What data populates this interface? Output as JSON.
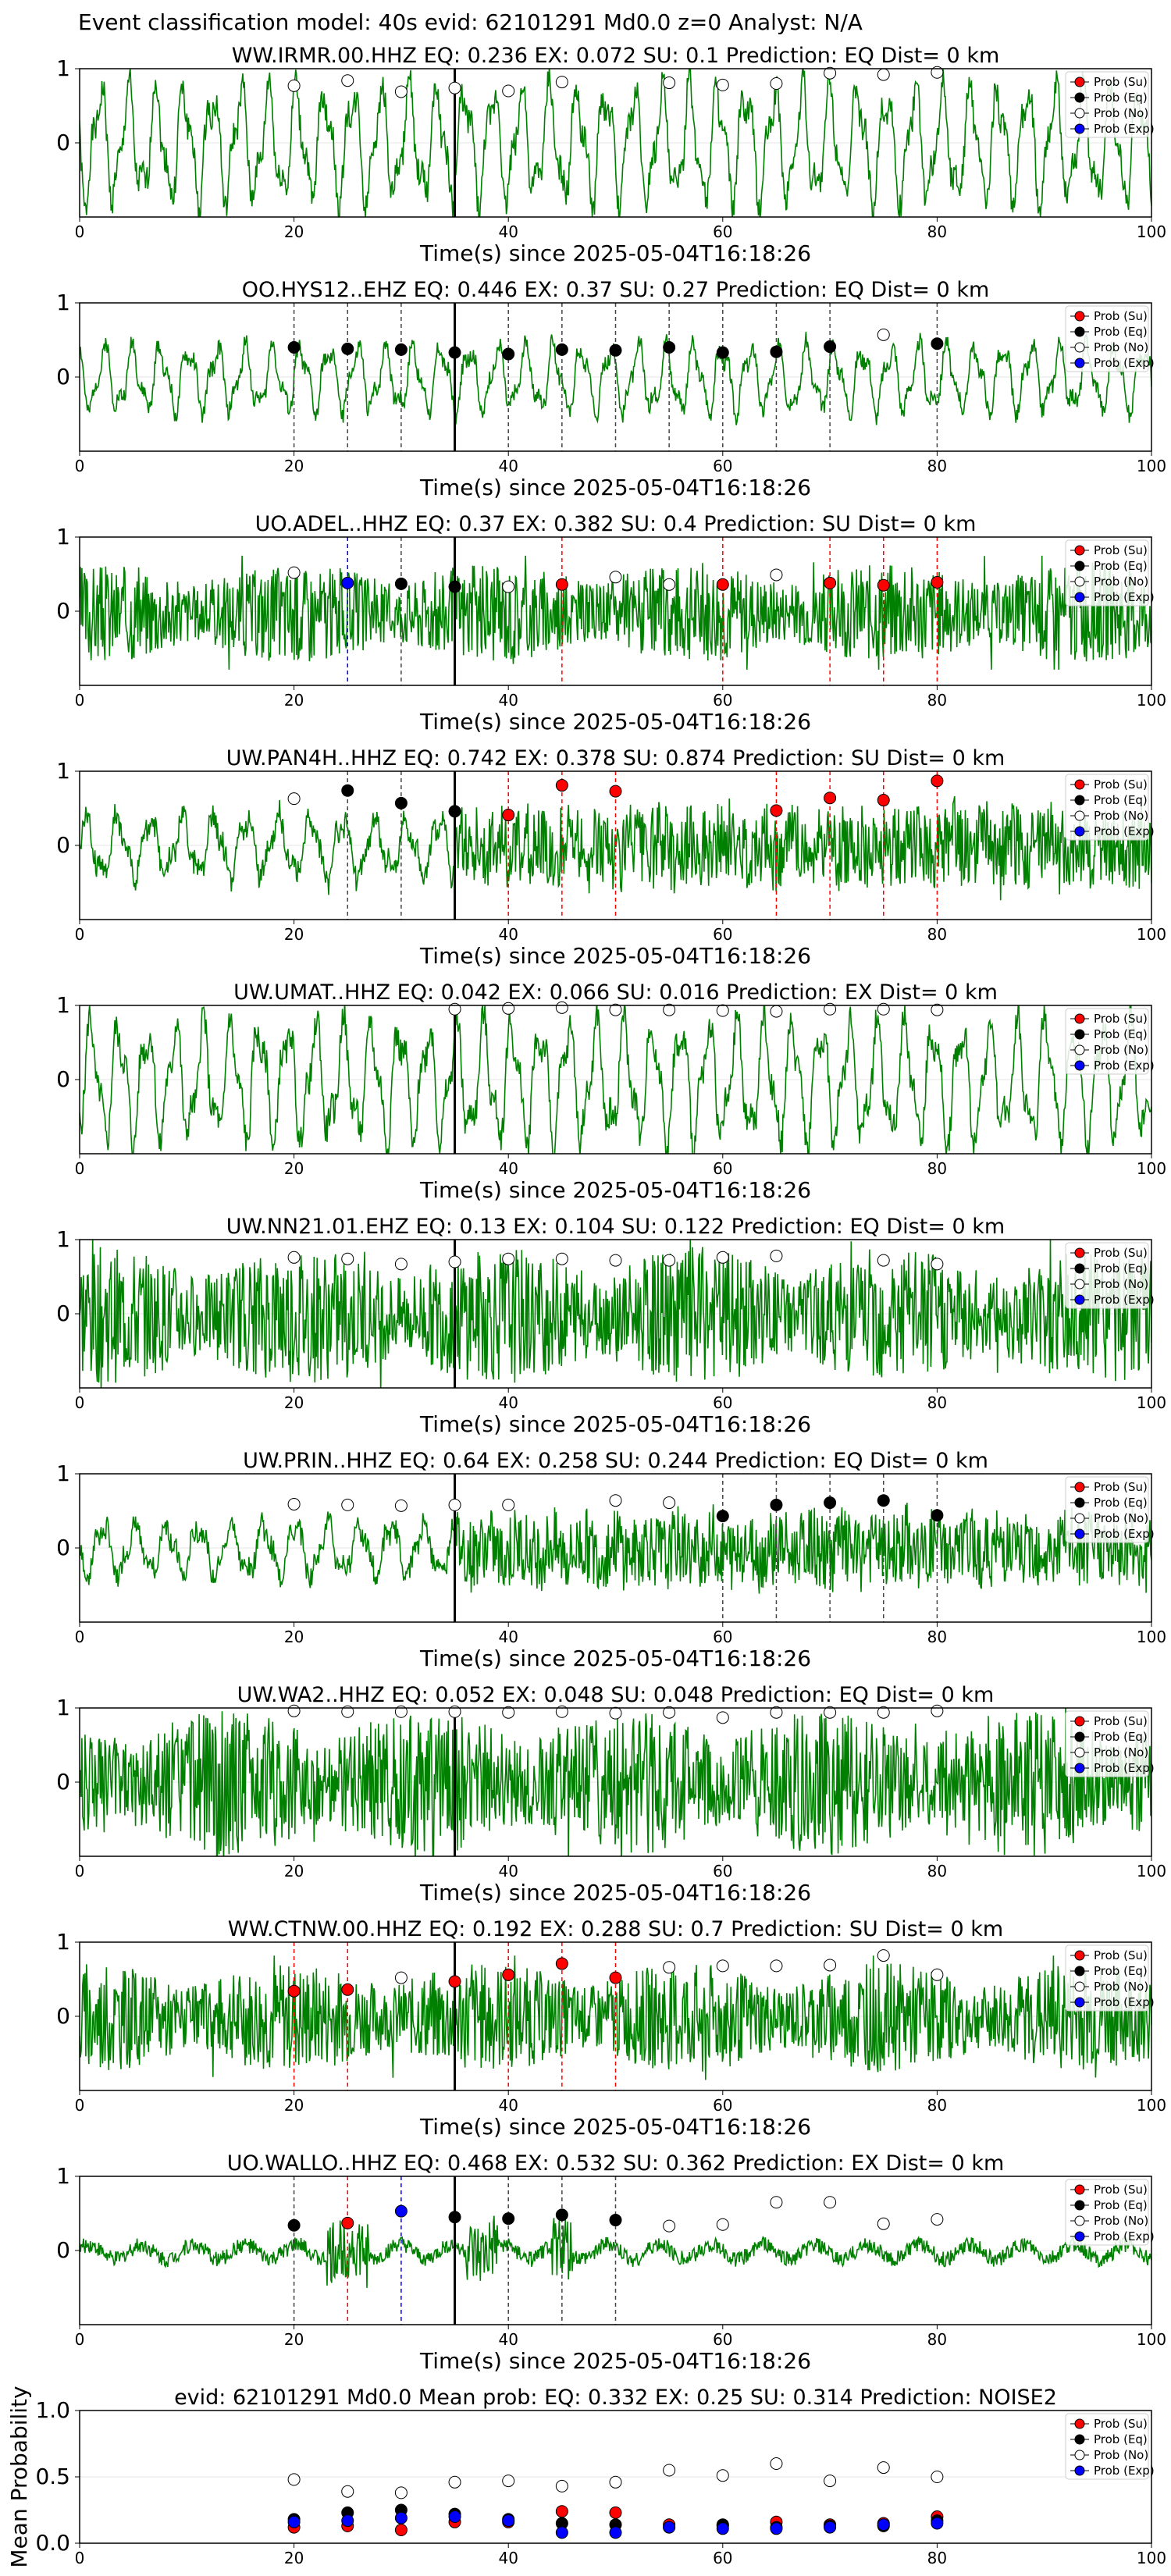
{
  "figure": {
    "suptitle": "Event classification model: 40s evid: 62101291 Md0.0 z=0 Analyst: N/A",
    "xlabel": "Time(s) since 2025-05-04T16:18:26",
    "legend": [
      "Prob (Su)",
      "Prob (Eq)",
      "Prob (No)",
      "Prob (Exp)"
    ],
    "colors": {
      "su": "#ff0000",
      "eq": "#000000",
      "no": "#ffffff",
      "exp": "#0000ff",
      "trace": "#008000",
      "onset": "#000000"
    }
  },
  "chart_data": [
    {
      "type": "line",
      "station": "WW.IRMR.00.HHZ",
      "title": "WW.IRMR.00.HHZ   EQ: 0.236   EX: 0.072   SU: 0.1   Prediction: EQ    Dist= 0 km",
      "xlim": [
        0,
        100
      ],
      "ylim": [
        -1,
        1
      ],
      "xticks": [
        0,
        20,
        40,
        60,
        80,
        100
      ],
      "yticks": [
        0,
        1
      ],
      "trace": {
        "style": "lowfreq",
        "amplitude": 0.78,
        "seed": 1
      },
      "onset": 35,
      "points": [
        {
          "x": 20,
          "y": 0.77,
          "c": "no"
        },
        {
          "x": 25,
          "y": 0.84,
          "c": "no"
        },
        {
          "x": 30,
          "y": 0.69,
          "c": "no"
        },
        {
          "x": 35,
          "y": 0.74,
          "c": "no"
        },
        {
          "x": 40,
          "y": 0.7,
          "c": "no"
        },
        {
          "x": 45,
          "y": 0.82,
          "c": "no"
        },
        {
          "x": 55,
          "y": 0.81,
          "c": "no"
        },
        {
          "x": 60,
          "y": 0.78,
          "c": "no"
        },
        {
          "x": 65,
          "y": 0.8,
          "c": "no"
        },
        {
          "x": 70,
          "y": 0.94,
          "c": "no"
        },
        {
          "x": 75,
          "y": 0.92,
          "c": "no"
        },
        {
          "x": 80,
          "y": 0.95,
          "c": "no"
        }
      ]
    },
    {
      "type": "line",
      "station": "OO.HYS12..EHZ",
      "title": "OO.HYS12..EHZ   EQ: 0.446   EX: 0.37   SU: 0.27   Prediction: EQ    Dist= 0 km",
      "xlim": [
        0,
        100
      ],
      "ylim": [
        -1,
        1
      ],
      "xticks": [
        0,
        20,
        40,
        60,
        80,
        100
      ],
      "yticks": [
        0,
        1
      ],
      "trace": {
        "style": "lowfreq",
        "amplitude": 0.45,
        "seed": 2
      },
      "onset": 35,
      "points": [
        {
          "x": 20,
          "y": 0.4,
          "c": "eq"
        },
        {
          "x": 25,
          "y": 0.38,
          "c": "eq"
        },
        {
          "x": 30,
          "y": 0.37,
          "c": "eq"
        },
        {
          "x": 35,
          "y": 0.33,
          "c": "eq"
        },
        {
          "x": 40,
          "y": 0.31,
          "c": "eq"
        },
        {
          "x": 45,
          "y": 0.37,
          "c": "eq"
        },
        {
          "x": 50,
          "y": 0.36,
          "c": "eq"
        },
        {
          "x": 55,
          "y": 0.4,
          "c": "eq"
        },
        {
          "x": 60,
          "y": 0.33,
          "c": "eq"
        },
        {
          "x": 65,
          "y": 0.34,
          "c": "eq"
        },
        {
          "x": 70,
          "y": 0.41,
          "c": "eq"
        },
        {
          "x": 75,
          "y": 0.57,
          "c": "no"
        },
        {
          "x": 80,
          "y": 0.45,
          "c": "eq"
        }
      ]
    },
    {
      "type": "line",
      "station": "UO.ADEL..HHZ",
      "title": "UO.ADEL..HHZ   EQ: 0.37   EX: 0.382   SU: 0.4   Prediction: SU    Dist= 0 km",
      "xlim": [
        0,
        100
      ],
      "ylim": [
        -1,
        1
      ],
      "xticks": [
        0,
        20,
        40,
        60,
        80,
        100
      ],
      "yticks": [
        0,
        1
      ],
      "trace": {
        "style": "noisy",
        "amplitude": 0.55,
        "seed": 3
      },
      "onset": 35,
      "points": [
        {
          "x": 20,
          "y": 0.52,
          "c": "no"
        },
        {
          "x": 25,
          "y": 0.38,
          "c": "exp"
        },
        {
          "x": 30,
          "y": 0.37,
          "c": "eq"
        },
        {
          "x": 35,
          "y": 0.33,
          "c": "eq"
        },
        {
          "x": 40,
          "y": 0.33,
          "c": "no"
        },
        {
          "x": 45,
          "y": 0.36,
          "c": "su"
        },
        {
          "x": 50,
          "y": 0.46,
          "c": "no"
        },
        {
          "x": 55,
          "y": 0.36,
          "c": "no"
        },
        {
          "x": 60,
          "y": 0.36,
          "c": "su"
        },
        {
          "x": 65,
          "y": 0.49,
          "c": "no"
        },
        {
          "x": 70,
          "y": 0.38,
          "c": "su"
        },
        {
          "x": 75,
          "y": 0.35,
          "c": "su"
        },
        {
          "x": 80,
          "y": 0.39,
          "c": "su"
        }
      ]
    },
    {
      "type": "line",
      "station": "UW.PAN4H..HHZ",
      "title": "UW.PAN4H..HHZ   EQ: 0.742   EX: 0.378   SU: 0.874   Prediction: SU    Dist= 0 km",
      "xlim": [
        0,
        100
      ],
      "ylim": [
        -1,
        1
      ],
      "xticks": [
        0,
        20,
        40,
        60,
        80,
        100
      ],
      "yticks": [
        0,
        1
      ],
      "trace": {
        "style": "mixed",
        "amplitude": 0.55,
        "seed": 4
      },
      "onset": 35,
      "points": [
        {
          "x": 20,
          "y": 0.63,
          "c": "no"
        },
        {
          "x": 25,
          "y": 0.74,
          "c": "eq"
        },
        {
          "x": 30,
          "y": 0.57,
          "c": "eq"
        },
        {
          "x": 35,
          "y": 0.46,
          "c": "eq"
        },
        {
          "x": 40,
          "y": 0.41,
          "c": "su"
        },
        {
          "x": 45,
          "y": 0.81,
          "c": "su"
        },
        {
          "x": 50,
          "y": 0.73,
          "c": "su"
        },
        {
          "x": 65,
          "y": 0.47,
          "c": "su"
        },
        {
          "x": 70,
          "y": 0.64,
          "c": "su"
        },
        {
          "x": 75,
          "y": 0.61,
          "c": "su"
        },
        {
          "x": 80,
          "y": 0.87,
          "c": "su"
        }
      ]
    },
    {
      "type": "line",
      "station": "UW.UMAT..HHZ",
      "title": "UW.UMAT..HHZ   EQ: 0.042  EX: 0.066  SU: 0.016   Prediction: EX    Dist= 0 km",
      "xlim": [
        0,
        100
      ],
      "ylim": [
        -1,
        1
      ],
      "xticks": [
        0,
        20,
        40,
        60,
        80,
        100
      ],
      "yticks": [
        0,
        1
      ],
      "trace": {
        "style": "lowfreq",
        "amplitude": 0.8,
        "seed": 5
      },
      "onset": 35,
      "points": [
        {
          "x": 35,
          "y": 0.95,
          "c": "no"
        },
        {
          "x": 40,
          "y": 0.96,
          "c": "no"
        },
        {
          "x": 45,
          "y": 0.97,
          "c": "no"
        },
        {
          "x": 50,
          "y": 0.94,
          "c": "no"
        },
        {
          "x": 55,
          "y": 0.94,
          "c": "no"
        },
        {
          "x": 60,
          "y": 0.93,
          "c": "no"
        },
        {
          "x": 65,
          "y": 0.92,
          "c": "no"
        },
        {
          "x": 70,
          "y": 0.95,
          "c": "no"
        },
        {
          "x": 75,
          "y": 0.95,
          "c": "no"
        },
        {
          "x": 80,
          "y": 0.94,
          "c": "no"
        }
      ]
    },
    {
      "type": "line",
      "station": "UW.NN21.01.EHZ",
      "title": "UW.NN21.01.EHZ   EQ: 0.13   EX: 0.104   SU: 0.122   Prediction: EQ    Dist= 0 km",
      "xlim": [
        0,
        100
      ],
      "ylim": [
        -1,
        1
      ],
      "xticks": [
        0,
        20,
        40,
        60,
        80,
        100
      ],
      "yticks": [
        0,
        1
      ],
      "trace": {
        "style": "noisy",
        "amplitude": 0.75,
        "seed": 6
      },
      "onset": 35,
      "points": [
        {
          "x": 20,
          "y": 0.76,
          "c": "no"
        },
        {
          "x": 25,
          "y": 0.74,
          "c": "no"
        },
        {
          "x": 30,
          "y": 0.67,
          "c": "no"
        },
        {
          "x": 35,
          "y": 0.7,
          "c": "no"
        },
        {
          "x": 40,
          "y": 0.74,
          "c": "no"
        },
        {
          "x": 45,
          "y": 0.74,
          "c": "no"
        },
        {
          "x": 50,
          "y": 0.72,
          "c": "no"
        },
        {
          "x": 55,
          "y": 0.72,
          "c": "no"
        },
        {
          "x": 60,
          "y": 0.76,
          "c": "no"
        },
        {
          "x": 65,
          "y": 0.78,
          "c": "no"
        },
        {
          "x": 75,
          "y": 0.72,
          "c": "no"
        },
        {
          "x": 80,
          "y": 0.67,
          "c": "no"
        }
      ]
    },
    {
      "type": "line",
      "station": "UW.PRIN..HHZ",
      "title": "UW.PRIN..HHZ   EQ: 0.64  EX: 0.258  SU: 0.244   Prediction: EQ    Dist= 0 km",
      "xlim": [
        0,
        100
      ],
      "ylim": [
        -1,
        1
      ],
      "xticks": [
        0,
        20,
        40,
        60,
        80,
        100
      ],
      "yticks": [
        0,
        1
      ],
      "trace": {
        "style": "mixed",
        "amplitude": 0.5,
        "seed": 7
      },
      "onset": 35,
      "points": [
        {
          "x": 20,
          "y": 0.59,
          "c": "no"
        },
        {
          "x": 25,
          "y": 0.58,
          "c": "no"
        },
        {
          "x": 30,
          "y": 0.57,
          "c": "no"
        },
        {
          "x": 35,
          "y": 0.58,
          "c": "no"
        },
        {
          "x": 40,
          "y": 0.58,
          "c": "no"
        },
        {
          "x": 50,
          "y": 0.64,
          "c": "no"
        },
        {
          "x": 55,
          "y": 0.61,
          "c": "no"
        },
        {
          "x": 60,
          "y": 0.43,
          "c": "eq"
        },
        {
          "x": 65,
          "y": 0.58,
          "c": "eq"
        },
        {
          "x": 70,
          "y": 0.61,
          "c": "eq"
        },
        {
          "x": 75,
          "y": 0.64,
          "c": "eq"
        },
        {
          "x": 80,
          "y": 0.44,
          "c": "eq"
        }
      ]
    },
    {
      "type": "line",
      "station": "UW.WA2..HHZ",
      "title": "UW.WA2..HHZ   EQ: 0.052  EX: 0.048  SU: 0.048   Prediction: EQ    Dist= 0 km",
      "xlim": [
        0,
        100
      ],
      "ylim": [
        -1,
        1
      ],
      "xticks": [
        0,
        20,
        40,
        60,
        80,
        100
      ],
      "yticks": [
        0,
        1
      ],
      "trace": {
        "style": "noisy",
        "amplitude": 0.8,
        "seed": 8
      },
      "onset": 35,
      "points": [
        {
          "x": 20,
          "y": 0.96,
          "c": "no"
        },
        {
          "x": 25,
          "y": 0.95,
          "c": "no"
        },
        {
          "x": 30,
          "y": 0.95,
          "c": "no"
        },
        {
          "x": 35,
          "y": 0.95,
          "c": "no"
        },
        {
          "x": 40,
          "y": 0.94,
          "c": "no"
        },
        {
          "x": 45,
          "y": 0.95,
          "c": "no"
        },
        {
          "x": 50,
          "y": 0.93,
          "c": "no"
        },
        {
          "x": 55,
          "y": 0.94,
          "c": "no"
        },
        {
          "x": 60,
          "y": 0.87,
          "c": "no"
        },
        {
          "x": 65,
          "y": 0.94,
          "c": "no"
        },
        {
          "x": 70,
          "y": 0.94,
          "c": "no"
        },
        {
          "x": 75,
          "y": 0.94,
          "c": "no"
        },
        {
          "x": 80,
          "y": 0.96,
          "c": "no"
        }
      ]
    },
    {
      "type": "line",
      "station": "WW.CTNW.00.HHZ",
      "title": "WW.CTNW.00.HHZ   EQ: 0.192  EX: 0.288  SU: 0.7   Prediction: SU    Dist= 0 km",
      "xlim": [
        0,
        100
      ],
      "ylim": [
        -1,
        1
      ],
      "xticks": [
        0,
        20,
        40,
        60,
        80,
        100
      ],
      "yticks": [
        0,
        1
      ],
      "trace": {
        "style": "noisy",
        "amplitude": 0.6,
        "seed": 9
      },
      "onset": 35,
      "points": [
        {
          "x": 20,
          "y": 0.34,
          "c": "su"
        },
        {
          "x": 25,
          "y": 0.36,
          "c": "su"
        },
        {
          "x": 30,
          "y": 0.52,
          "c": "no"
        },
        {
          "x": 35,
          "y": 0.47,
          "c": "su"
        },
        {
          "x": 40,
          "y": 0.56,
          "c": "su"
        },
        {
          "x": 45,
          "y": 0.71,
          "c": "su"
        },
        {
          "x": 50,
          "y": 0.52,
          "c": "su"
        },
        {
          "x": 55,
          "y": 0.66,
          "c": "no"
        },
        {
          "x": 60,
          "y": 0.68,
          "c": "no"
        },
        {
          "x": 65,
          "y": 0.68,
          "c": "no"
        },
        {
          "x": 70,
          "y": 0.69,
          "c": "no"
        },
        {
          "x": 75,
          "y": 0.82,
          "c": "no"
        },
        {
          "x": 80,
          "y": 0.56,
          "c": "no"
        }
      ]
    },
    {
      "type": "line",
      "station": "UO.WALLO..HHZ",
      "title": "UO.WALLO..HHZ   EQ: 0.468  EX: 0.532  SU: 0.362   Prediction: EX    Dist= 0 km",
      "xlim": [
        0,
        100
      ],
      "ylim": [
        -1,
        1
      ],
      "xticks": [
        0,
        20,
        40,
        60,
        80,
        100
      ],
      "yticks": [
        0,
        1
      ],
      "trace": {
        "style": "quiet",
        "amplitude": 0.35,
        "seed": 10
      },
      "onset": 35,
      "points": [
        {
          "x": 20,
          "y": 0.34,
          "c": "eq"
        },
        {
          "x": 25,
          "y": 0.37,
          "c": "su"
        },
        {
          "x": 30,
          "y": 0.53,
          "c": "exp"
        },
        {
          "x": 35,
          "y": 0.45,
          "c": "eq"
        },
        {
          "x": 40,
          "y": 0.43,
          "c": "eq"
        },
        {
          "x": 45,
          "y": 0.48,
          "c": "eq"
        },
        {
          "x": 50,
          "y": 0.41,
          "c": "eq"
        },
        {
          "x": 55,
          "y": 0.33,
          "c": "no"
        },
        {
          "x": 60,
          "y": 0.35,
          "c": "no"
        },
        {
          "x": 65,
          "y": 0.65,
          "c": "no"
        },
        {
          "x": 70,
          "y": 0.65,
          "c": "no"
        },
        {
          "x": 75,
          "y": 0.36,
          "c": "no"
        },
        {
          "x": 80,
          "y": 0.42,
          "c": "no"
        }
      ]
    },
    {
      "type": "scatter",
      "title": "evid: 62101291  Md0.0   Mean prob:   EQ: 0.332  EX: 0.25  SU: 0.314   Prediction: NOISE2",
      "ylabel": "Mean Probability",
      "xlim": [
        0,
        100
      ],
      "ylim": [
        0,
        1
      ],
      "xticks": [
        0,
        20,
        40,
        60,
        80,
        100
      ],
      "yticks": [
        0.0,
        0.5,
        1.0
      ],
      "ytick_labels": [
        "0.0",
        "0.5",
        "1.0"
      ],
      "series": [
        {
          "name": "Prob (No)",
          "c": "no",
          "x": [
            20,
            25,
            30,
            35,
            40,
            45,
            50,
            55,
            60,
            65,
            70,
            75,
            80
          ],
          "y": [
            0.48,
            0.39,
            0.38,
            0.46,
            0.47,
            0.43,
            0.46,
            0.55,
            0.51,
            0.6,
            0.47,
            0.57,
            0.5
          ]
        },
        {
          "name": "Prob (Su)",
          "c": "su",
          "x": [
            20,
            25,
            30,
            35,
            40,
            45,
            50,
            55,
            60,
            65,
            70,
            75,
            80
          ],
          "y": [
            0.12,
            0.13,
            0.1,
            0.16,
            0.16,
            0.24,
            0.23,
            0.14,
            0.13,
            0.16,
            0.14,
            0.15,
            0.2
          ]
        },
        {
          "name": "Prob (Eq)",
          "c": "eq",
          "x": [
            20,
            25,
            30,
            35,
            40,
            45,
            50,
            55,
            60,
            65,
            70,
            75,
            80
          ],
          "y": [
            0.18,
            0.23,
            0.25,
            0.22,
            0.18,
            0.15,
            0.14,
            0.12,
            0.14,
            0.12,
            0.13,
            0.13,
            0.17
          ]
        },
        {
          "name": "Prob (Exp)",
          "c": "exp",
          "x": [
            20,
            25,
            30,
            35,
            40,
            45,
            50,
            55,
            60,
            65,
            70,
            75,
            80
          ],
          "y": [
            0.16,
            0.17,
            0.19,
            0.2,
            0.17,
            0.08,
            0.08,
            0.12,
            0.11,
            0.11,
            0.12,
            0.14,
            0.15
          ]
        }
      ]
    }
  ]
}
